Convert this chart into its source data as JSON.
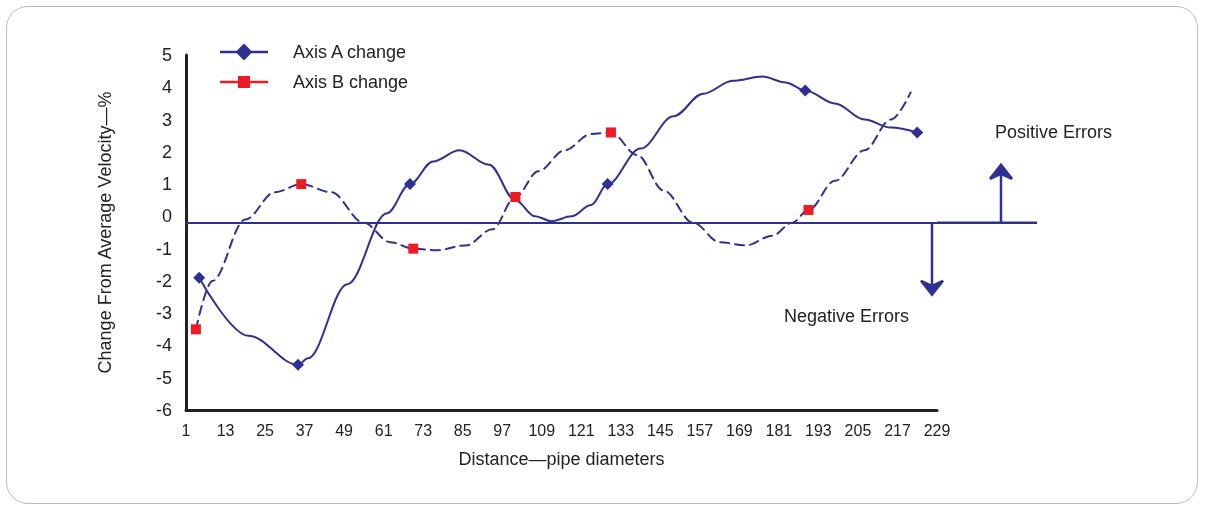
{
  "chart_data": {
    "type": "line",
    "xlabel": "Distance—pipe diameters",
    "ylabel": "Change From Average Velocity—%",
    "xlim": [
      1,
      229
    ],
    "xticks": [
      1,
      13,
      25,
      37,
      49,
      61,
      73,
      85,
      97,
      109,
      121,
      133,
      145,
      157,
      169,
      181,
      193,
      205,
      217,
      229
    ],
    "ylim": [
      -6,
      5
    ],
    "yticks": [
      -6,
      -5,
      -4,
      -3,
      -2,
      -1,
      0,
      1,
      2,
      3,
      4,
      5
    ],
    "grid": false,
    "legend": "top left",
    "series": [
      {
        "color": "#2e3192",
        "line_style": "solid",
        "marker": "none",
        "x": [
          5,
          20,
          35,
          38,
          50,
          62,
          69,
          76,
          84,
          93,
          101,
          107,
          112,
          118,
          124,
          129,
          139,
          149,
          158,
          167,
          176,
          183,
          189,
          198,
          207,
          215,
          223
        ],
        "values": [
          -1.9,
          -3.7,
          -4.6,
          -4.4,
          -2.1,
          0.1,
          1.0,
          1.7,
          2.05,
          1.6,
          0.5,
          0.0,
          -0.15,
          0.0,
          0.35,
          1.0,
          2.1,
          3.1,
          3.8,
          4.2,
          4.33,
          4.15,
          3.9,
          3.5,
          3.0,
          2.75,
          2.6
        ]
      },
      {
        "color": "#2e3192",
        "line_style": "dashed",
        "marker": "none",
        "x": [
          4,
          9,
          19,
          28,
          36,
          45,
          55,
          63,
          70,
          77,
          86,
          94,
          101,
          108,
          116,
          124,
          130,
          138,
          146,
          155,
          163,
          171,
          179,
          185,
          190,
          198,
          207,
          215,
          221
        ],
        "values": [
          -3.5,
          -2.0,
          -0.1,
          0.75,
          1.0,
          0.75,
          -0.2,
          -0.8,
          -1.0,
          -1.05,
          -0.9,
          -0.4,
          0.6,
          1.4,
          2.05,
          2.55,
          2.6,
          1.9,
          0.8,
          -0.2,
          -0.8,
          -0.9,
          -0.6,
          -0.2,
          0.2,
          1.1,
          2.05,
          3.0,
          3.84
        ]
      },
      {
        "type": "scatter",
        "name": "Axis A change",
        "color": "#2e3192",
        "marker": "diamond",
        "x": [
          5,
          35,
          69,
          129,
          189,
          223
        ],
        "values": [
          -1.9,
          -4.6,
          1.0,
          1.0,
          3.9,
          2.6
        ]
      },
      {
        "type": "scatter",
        "name": "Axis B change",
        "color": "#ed1c24",
        "marker": "square",
        "x": [
          4,
          36,
          70,
          101,
          130,
          190
        ],
        "values": [
          -3.5,
          1.0,
          -1.0,
          0.6,
          2.6,
          0.2
        ]
      }
    ],
    "ref_lines": [
      {
        "axis": "y",
        "value": -0.2,
        "color": "#2e3192",
        "line_style": "solid"
      }
    ],
    "annotations": [
      "Positive Errors",
      "Negative Errors"
    ]
  }
}
